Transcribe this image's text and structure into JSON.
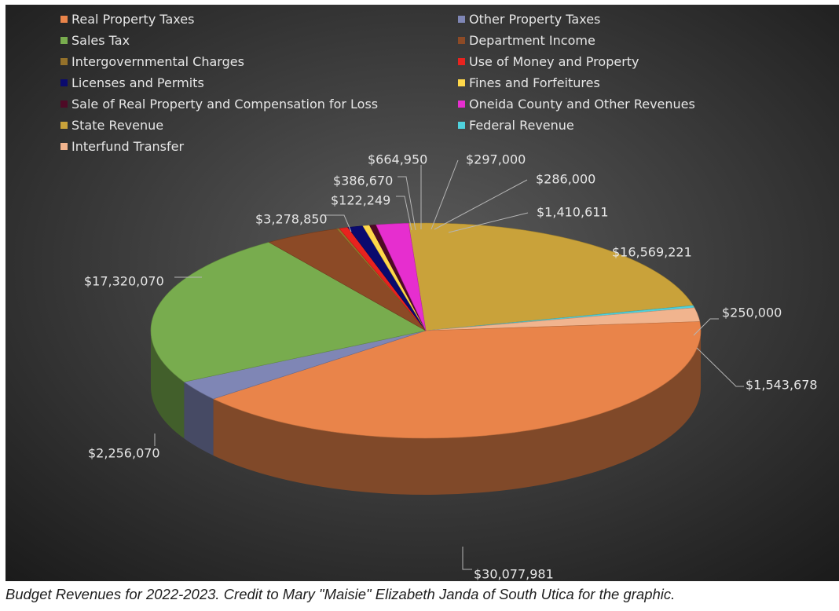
{
  "chart_data": {
    "type": "pie",
    "style": "3d",
    "legend_position": "top",
    "slices": [
      {
        "category": "State Revenue",
        "value": 16569221,
        "label": "$16,569,221",
        "color": "#c9a23a"
      },
      {
        "category": "Federal Revenue",
        "value": 250000,
        "label": "$250,000",
        "color": "#4fd2dd"
      },
      {
        "category": "Interfund Transfer",
        "value": 1543678,
        "label": "$1,543,678",
        "color": "#f1b48e"
      },
      {
        "category": "Real Property Taxes",
        "value": 30077981,
        "label": "$30,077,981",
        "color": "#e9844a"
      },
      {
        "category": "Other Property Taxes",
        "value": 2256070,
        "label": "$2,256,070",
        "color": "#7f86b5"
      },
      {
        "category": "Sales Tax",
        "value": 17320070,
        "label": "$17,320,070",
        "color": "#78ac4e"
      },
      {
        "category": "Department Income",
        "value": 3278850,
        "label": "$3,278,850",
        "color": "#8c4a26"
      },
      {
        "category": "Intergovernmental Charges",
        "value": 122249,
        "label": "$122,249",
        "color": "#94712a"
      },
      {
        "category": "Use of Money and Property",
        "value": 386670,
        "label": "$386,670",
        "color": "#e8231f"
      },
      {
        "category": "Licenses and Permits",
        "value": 664950,
        "label": "$664,950",
        "color": "#0a0a6e"
      },
      {
        "category": "Fines and Forfeitures",
        "value": 297000,
        "label": "$297,000",
        "color": "#ffd84a"
      },
      {
        "category": "Sale of Real Property and Compensation for Loss",
        "value": 286000,
        "label": "$286,000",
        "color": "#4e0a26"
      },
      {
        "category": "Oneida County and Other Revenues",
        "value": 1410611,
        "label": "$1,410,611",
        "color": "#e62ecf"
      }
    ]
  },
  "legend": [
    {
      "label": "Real Property Taxes",
      "color": "#e9844a"
    },
    {
      "label": "Other Property Taxes",
      "color": "#7f86b5"
    },
    {
      "label": "Sales Tax",
      "color": "#78ac4e"
    },
    {
      "label": "Department Income",
      "color": "#8c4a26"
    },
    {
      "label": "Intergovernmental Charges",
      "color": "#94712a"
    },
    {
      "label": "Use of Money and Property",
      "color": "#e8231f"
    },
    {
      "label": "Licenses and Permits",
      "color": "#0a0a6e"
    },
    {
      "label": "Fines and Forfeitures",
      "color": "#ffd84a"
    },
    {
      "label": "Sale of Real Property and Compensation for Loss",
      "color": "#4e0a26"
    },
    {
      "label": "Oneida County and Other Revenues",
      "color": "#e62ecf"
    },
    {
      "label": "State Revenue",
      "color": "#c9a23a"
    },
    {
      "label": "Federal Revenue",
      "color": "#4fd2dd"
    },
    {
      "label": "Interfund Transfer",
      "color": "#f1b48e"
    }
  ],
  "caption": "Budget Revenues for 2022-2023. Credit to Mary \"Maisie\" Elizabeth Janda of South Utica for the graphic.",
  "colors": {
    "panel_top": "#5b5b5b",
    "panel_bottom": "#1a1a1a",
    "label_text": "#e6e6e6",
    "leader_line": "#b5b5b5"
  }
}
